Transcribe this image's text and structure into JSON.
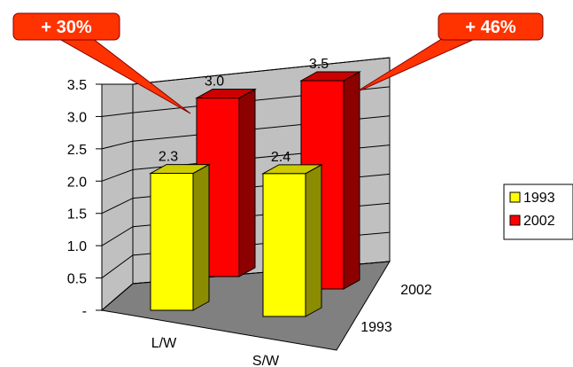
{
  "chart_data": {
    "type": "bar",
    "style": "3d-clustered",
    "categories": [
      "L/W",
      "S/W"
    ],
    "series": [
      {
        "name": "1993",
        "values": [
          2.3,
          2.4
        ],
        "color": "#FFFF00"
      },
      {
        "name": "2002",
        "values": [
          3.0,
          3.5
        ],
        "color": "#FF0000"
      }
    ],
    "depth_labels": [
      "1993",
      "2002"
    ],
    "y_ticks": [
      "-",
      "0.5",
      "1.0",
      "1.5",
      "2.0",
      "2.5",
      "3.0",
      "3.5"
    ],
    "ylim": [
      0,
      3.5
    ],
    "data_labels": [
      "2.3",
      "3.0",
      "2.4",
      "3.5"
    ],
    "legend": {
      "position": "right",
      "entries": [
        "1993",
        "2002"
      ]
    },
    "callouts": [
      {
        "text": "+ 30%",
        "color": "#FF3300"
      },
      {
        "text": "+ 46%",
        "color": "#FF3300"
      }
    ],
    "grid": true,
    "wall_color": "#C0C0C0",
    "floor_color": "#808080"
  }
}
